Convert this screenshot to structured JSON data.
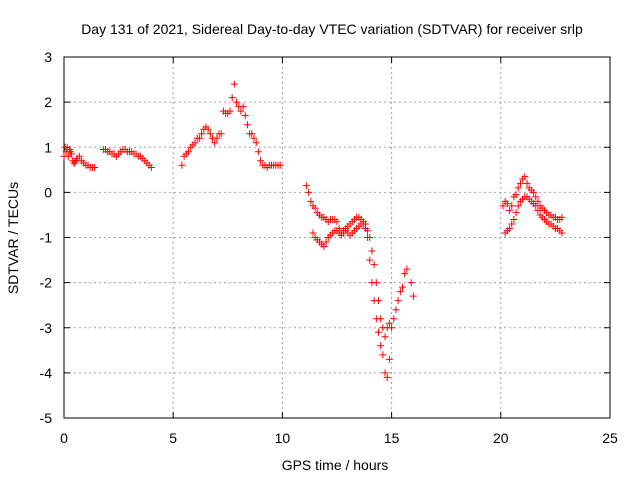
{
  "chart_data": {
    "type": "scatter",
    "title": "Day 131 of 2021, Sidereal Day-to-day VTEC variation (SDTVAR) for receiver srlp",
    "xlabel": "GPS time / hours",
    "ylabel": "SDTVAR / TECUs",
    "xlim": [
      0,
      25
    ],
    "ylim": [
      -5,
      3
    ],
    "xticks": [
      0,
      5,
      10,
      15,
      20,
      25
    ],
    "yticks": [
      3,
      2,
      1,
      0,
      -1,
      -2,
      -3,
      -4,
      -5
    ],
    "xtick_labels": [
      "0",
      "5",
      "10",
      "15",
      "20",
      "25"
    ],
    "ytick_labels": [
      "3",
      "2",
      "1",
      "0",
      "-1",
      "-2",
      "-3",
      "-4",
      "-5"
    ],
    "grid": true,
    "marker": "+",
    "series": [
      {
        "name": "SDTVAR",
        "color": "#ff0000",
        "x": [
          0.0,
          0.05,
          0.1,
          0.15,
          0.2,
          0.25,
          0.3,
          0.35,
          0.4,
          0.45,
          0.5,
          0.55,
          0.6,
          0.7,
          0.8,
          0.9,
          1.0,
          1.1,
          1.2,
          1.3,
          1.4,
          1.8,
          1.9,
          2.0,
          2.1,
          2.2,
          2.3,
          2.4,
          2.5,
          2.6,
          2.7,
          2.8,
          2.9,
          3.0,
          3.1,
          3.2,
          3.3,
          3.4,
          3.5,
          3.6,
          3.7,
          3.8,
          3.9,
          4.0,
          5.4,
          5.5,
          5.6,
          5.7,
          5.8,
          5.9,
          6.0,
          6.1,
          6.2,
          6.3,
          6.4,
          6.5,
          6.6,
          6.7,
          6.8,
          6.9,
          7.0,
          7.1,
          7.2,
          7.3,
          7.4,
          7.5,
          7.6,
          7.7,
          7.8,
          7.9,
          8.0,
          8.1,
          8.2,
          8.3,
          8.4,
          8.5,
          8.6,
          8.7,
          8.8,
          8.9,
          9.0,
          9.1,
          9.2,
          9.3,
          9.4,
          9.5,
          9.6,
          9.7,
          9.8,
          9.9,
          11.1,
          11.2,
          11.3,
          11.4,
          11.5,
          11.6,
          11.7,
          11.8,
          11.9,
          12.0,
          12.1,
          12.2,
          12.3,
          12.4,
          12.5,
          12.6,
          12.7,
          12.8,
          12.9,
          13.0,
          13.1,
          13.2,
          13.3,
          13.4,
          13.5,
          13.6,
          13.7,
          13.8,
          13.9,
          14.0,
          14.1,
          14.2,
          14.3,
          14.4,
          14.5,
          14.6,
          14.7,
          14.8,
          14.9,
          15.0,
          15.1,
          15.2,
          15.3,
          15.4,
          15.5,
          15.6,
          15.7,
          15.9,
          16.0,
          11.4,
          11.5,
          11.6,
          11.7,
          11.8,
          11.9,
          12.0,
          12.1,
          12.2,
          12.3,
          12.4,
          12.5,
          12.6,
          12.7,
          12.8,
          12.9,
          13.0,
          13.1,
          13.2,
          13.3,
          13.4,
          13.5,
          13.6,
          13.7,
          13.8,
          13.9,
          14.0,
          14.1,
          14.2,
          14.3,
          14.4,
          14.5,
          14.6,
          14.7,
          14.8,
          14.9,
          20.1,
          20.2,
          20.3,
          20.4,
          20.5,
          20.6,
          20.7,
          20.8,
          20.9,
          21.0,
          21.1,
          21.2,
          21.3,
          21.4,
          21.5,
          21.6,
          21.7,
          21.8,
          21.9,
          22.0,
          22.1,
          22.2,
          22.3,
          22.4,
          22.5,
          22.6,
          22.7,
          22.8,
          20.2,
          20.3,
          20.4,
          20.5,
          20.6,
          20.7,
          20.8,
          20.9,
          21.0,
          21.1,
          21.2,
          21.3,
          21.4,
          21.5,
          21.6,
          21.7,
          21.8,
          21.9,
          22.0,
          22.1,
          22.2,
          22.3,
          22.4,
          22.5,
          22.6,
          22.7,
          22.8
        ],
        "y": [
          0.8,
          1.0,
          0.9,
          1.0,
          0.8,
          0.95,
          0.9,
          0.85,
          0.7,
          0.65,
          0.65,
          0.7,
          0.75,
          0.8,
          0.7,
          0.65,
          0.6,
          0.6,
          0.55,
          0.55,
          0.55,
          0.95,
          0.95,
          0.9,
          0.9,
          0.85,
          0.85,
          0.8,
          0.85,
          0.9,
          0.95,
          0.95,
          0.9,
          0.9,
          0.9,
          0.85,
          0.85,
          0.8,
          0.8,
          0.75,
          0.7,
          0.65,
          0.6,
          0.55,
          0.6,
          0.8,
          0.85,
          0.9,
          1.0,
          1.05,
          1.1,
          1.2,
          1.2,
          1.3,
          1.4,
          1.45,
          1.4,
          1.3,
          1.2,
          1.1,
          1.2,
          1.3,
          1.3,
          1.8,
          1.75,
          1.75,
          1.8,
          2.1,
          2.4,
          2.0,
          1.9,
          1.8,
          1.9,
          1.7,
          1.5,
          1.3,
          1.3,
          1.2,
          1.1,
          0.9,
          0.7,
          0.6,
          0.6,
          0.55,
          0.6,
          0.6,
          0.6,
          0.6,
          0.6,
          0.6,
          0.15,
          0.0,
          -0.2,
          -0.3,
          -0.35,
          -0.45,
          -0.5,
          -0.55,
          -0.55,
          -0.6,
          -0.65,
          -0.6,
          -0.6,
          -0.6,
          -0.65,
          -0.8,
          -0.9,
          -0.85,
          -0.8,
          -0.75,
          -0.7,
          -0.65,
          -0.6,
          -0.55,
          -0.55,
          -0.6,
          -0.7,
          -0.8,
          -1.0,
          -1.5,
          -2.0,
          -2.4,
          -2.8,
          -3.1,
          -3.4,
          -3.6,
          -4.0,
          -4.1,
          -3.7,
          -3.0,
          -2.8,
          -2.6,
          -2.4,
          -2.2,
          -2.1,
          -1.8,
          -1.7,
          -2.0,
          -2.3,
          -0.9,
          -1.0,
          -1.05,
          -1.1,
          -1.15,
          -1.2,
          -1.1,
          -1.0,
          -0.95,
          -0.9,
          -0.85,
          -0.85,
          -0.9,
          -0.95,
          -0.9,
          -0.85,
          -0.9,
          -0.95,
          -0.9,
          -0.85,
          -0.8,
          -0.75,
          -0.7,
          -0.65,
          -0.7,
          -0.85,
          -1.0,
          -1.3,
          -1.6,
          -2.0,
          -2.4,
          -2.8,
          -3.0,
          -3.2,
          -3.0,
          -2.9,
          -0.3,
          -0.2,
          -0.25,
          -0.4,
          -0.3,
          -0.1,
          -0.05,
          0.1,
          0.2,
          0.3,
          0.35,
          0.2,
          0.1,
          0.05,
          0.0,
          -0.1,
          -0.2,
          -0.3,
          -0.35,
          -0.4,
          -0.45,
          -0.5,
          -0.5,
          -0.55,
          -0.55,
          -0.6,
          -0.6,
          -0.55,
          -0.9,
          -0.85,
          -0.8,
          -0.7,
          -0.6,
          -0.45,
          -0.3,
          -0.2,
          -0.15,
          -0.1,
          -0.1,
          -0.15,
          -0.2,
          -0.25,
          -0.3,
          -0.4,
          -0.5,
          -0.55,
          -0.6,
          -0.65,
          -0.7,
          -0.7,
          -0.75,
          -0.8,
          -0.8,
          -0.85,
          -0.9
        ]
      }
    ]
  }
}
